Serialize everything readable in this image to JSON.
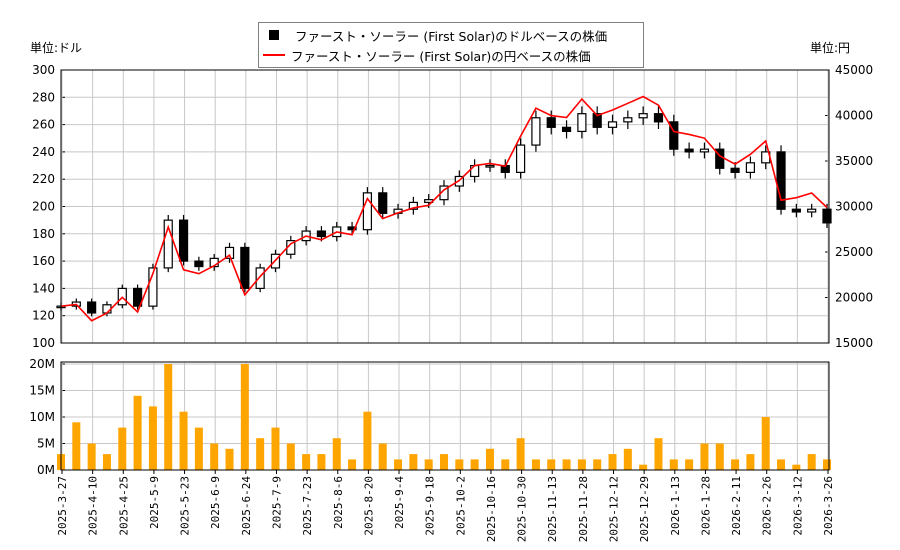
{
  "chart_data": {
    "type": "candlestick+line+bar",
    "legend": [
      "ファースト・ソーラー (First Solar)のドルベースの株価",
      "ファースト・ソーラー (First Solar)の円ベースの株価"
    ],
    "legend_placement": "top-center",
    "left_unit": "単位:ドル",
    "right_unit": "単位:円",
    "y_left": {
      "range": [
        100,
        300
      ],
      "ticks": [
        100,
        120,
        140,
        160,
        180,
        200,
        220,
        240,
        260,
        280,
        300
      ]
    },
    "y_right": {
      "range": [
        15000,
        45000
      ],
      "ticks": [
        15000,
        20000,
        25000,
        30000,
        35000,
        40000,
        45000
      ]
    },
    "volume_axis": {
      "range": [
        0,
        20
      ],
      "unit": "M",
      "ticks": [
        "0M",
        "5M",
        "10M",
        "15M",
        "20M"
      ]
    },
    "x_ticks": [
      "2025-3-27",
      "2025-4-10",
      "2025-4-25",
      "2025-5-9",
      "2025-5-23",
      "2025-6-9",
      "2025-6-24",
      "2025-7-9",
      "2025-7-23",
      "2025-8-6",
      "2025-8-20",
      "2025-9-4",
      "2025-9-18",
      "2025-10-2",
      "2025-10-16",
      "2025-10-30",
      "2025-11-13",
      "2025-11-28",
      "2025-12-12",
      "2025-12-29",
      "2026-1-13",
      "2026-1-28",
      "2026-2-11",
      "2026-2-26",
      "2026-3-12",
      "2026-3-26"
    ],
    "usd_close": [
      127,
      130,
      122,
      128,
      140,
      127,
      155,
      190,
      160,
      156,
      162,
      170,
      140,
      155,
      165,
      175,
      182,
      178,
      185,
      183,
      210,
      195,
      198,
      203,
      205,
      215,
      222,
      230,
      230,
      225,
      245,
      265,
      258,
      255,
      268,
      258,
      262,
      265,
      268,
      262,
      242,
      240,
      242,
      228,
      225,
      232,
      240,
      198,
      196,
      198,
      188
    ],
    "jpy_close": [
      19050,
      19240,
      17450,
      18300,
      20020,
      18415,
      22630,
      27740,
      23040,
      22620,
      23490,
      24650,
      20300,
      22320,
      24090,
      25900,
      26750,
      26340,
      27200,
      26900,
      30870,
      28670,
      29300,
      29840,
      30140,
      31820,
      32860,
      34500,
      34730,
      34430,
      37730,
      40810,
      39990,
      39780,
      41810,
      39990,
      40610,
      41340,
      42080,
      41130,
      38240,
      37920,
      37510,
      35570,
      34650,
      35730,
      37200,
      30690,
      30970,
      31480,
      29890
    ],
    "volume_m": [
      3,
      9,
      5,
      3,
      8,
      14,
      12,
      20,
      11,
      8,
      5,
      4,
      20,
      6,
      8,
      5,
      3,
      3,
      6,
      2,
      11,
      5,
      2,
      3,
      2,
      3,
      2,
      2,
      4,
      2,
      6,
      2,
      2,
      2,
      2,
      2,
      3,
      4,
      1,
      6,
      2,
      2,
      5,
      5,
      2,
      3,
      10,
      2,
      1,
      3,
      2
    ],
    "colors": {
      "candle": "#000000",
      "jpy_line": "#ff0000",
      "volume": "#ffa500",
      "grid": "#c8c8c8"
    }
  }
}
